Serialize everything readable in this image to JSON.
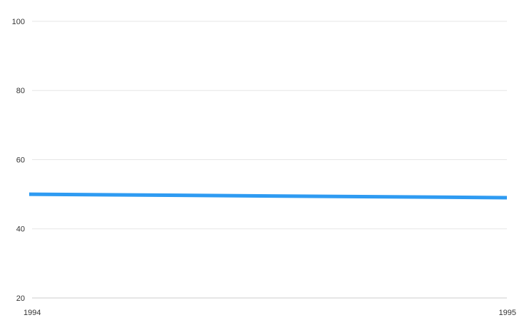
{
  "chart_data": {
    "type": "line",
    "title": "",
    "xlabel": "",
    "ylabel": "",
    "x": [
      "1994",
      "1995"
    ],
    "series": [
      {
        "values": [
          50,
          49
        ],
        "color": "#2e9bf2"
      }
    ],
    "ylim": [
      20,
      100
    ],
    "y_ticks": [
      "20",
      "40",
      "60",
      "80",
      "100"
    ],
    "grid": true,
    "legend": "none"
  }
}
